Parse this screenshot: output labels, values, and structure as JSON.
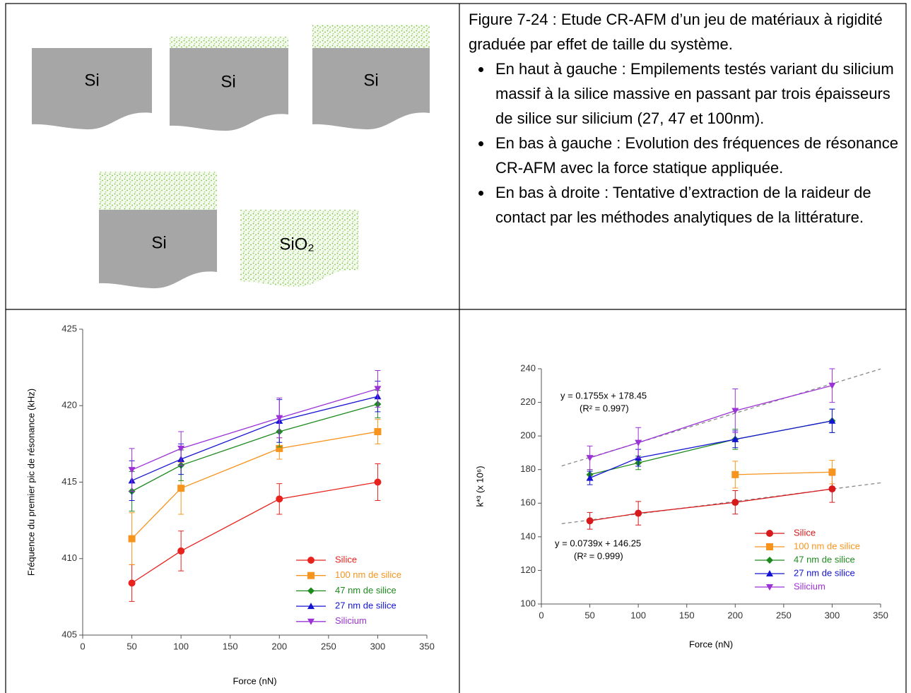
{
  "diagram": {
    "labels": [
      "Si",
      "Si",
      "Si",
      "Si",
      "SiO₂"
    ]
  },
  "caption": {
    "title": "Figure 7-24 : Etude CR-AFM d’un jeu de matériaux à rigidité graduée par effet de taille du système.",
    "bullets": [
      "En haut à gauche : Empilements testés variant du silicium massif à la silice massive en passant par trois épaisseurs de silice sur silicium (27, 47 et 100nm).",
      "En bas à gauche : Evolution des fréquences de résonance CR-AFM avec la force statique appliquée.",
      "En bas à droite : Tentative d’extraction de la raideur de contact par les méthodes analytiques de la littérature."
    ]
  },
  "chart_data": [
    {
      "type": "line",
      "x_label": "Force (nN)",
      "y_label": "Fréquence du premier pic de résonance (kHz)",
      "x": [
        50,
        100,
        200,
        300
      ],
      "xlim": [
        0,
        350
      ],
      "xticks": [
        0,
        50,
        100,
        150,
        200,
        250,
        300,
        350
      ],
      "ylim": [
        405,
        425
      ],
      "yticks": [
        405,
        410,
        415,
        420,
        425
      ],
      "legend": "lower right",
      "series": [
        {
          "name": "Silice",
          "color": "#e8221c",
          "marker": "circle",
          "values": [
            408.4,
            410.5,
            413.9,
            415.0
          ],
          "errors": [
            1.2,
            1.3,
            1.0,
            1.2
          ]
        },
        {
          "name": "100 nm de silice",
          "color": "#f7941d",
          "marker": "square",
          "values": [
            411.3,
            414.6,
            417.2,
            418.3
          ],
          "errors": [
            1.7,
            1.7,
            0.7,
            0.8
          ]
        },
        {
          "name": "47 nm de silice",
          "color": "#1e8a1e",
          "marker": "diamond",
          "values": [
            414.4,
            416.1,
            418.3,
            420.1
          ],
          "errors": [
            1.3,
            1.0,
            1.0,
            0.9
          ]
        },
        {
          "name": "27 nm de silice",
          "color": "#1414d2",
          "marker": "triangle-up",
          "values": [
            415.1,
            416.5,
            419.0,
            420.6
          ],
          "errors": [
            1.3,
            1.0,
            1.4,
            1.0
          ]
        },
        {
          "name": "Silicium",
          "color": "#9b32d6",
          "marker": "triangle-down",
          "values": [
            415.8,
            417.2,
            419.2,
            421.1
          ],
          "errors": [
            1.4,
            1.1,
            1.3,
            1.2
          ]
        }
      ]
    },
    {
      "type": "line",
      "x_label": "Force (nN)",
      "y_label": "k*³ (x 10⁶)",
      "x": [
        50,
        100,
        200,
        300
      ],
      "xlim": [
        0,
        350
      ],
      "xticks": [
        0,
        50,
        100,
        150,
        200,
        250,
        300,
        350
      ],
      "ylim": [
        100,
        240
      ],
      "yticks": [
        100,
        120,
        140,
        160,
        180,
        200,
        220,
        240
      ],
      "legend": "lower right",
      "fits": [
        {
          "label": "y = 0.1755x + 178.45",
          "r2": "(R² = 0.997)",
          "slope": 0.1755,
          "intercept": 178.45
        },
        {
          "label": "y = 0.0739x + 146.25",
          "r2": "(R² = 0.999)",
          "slope": 0.0739,
          "intercept": 146.25
        }
      ],
      "series": [
        {
          "name": "Silice",
          "color": "#d7191c",
          "marker": "circle",
          "values": [
            149.5,
            154,
            160.5,
            168.5
          ],
          "errors": [
            5,
            7,
            7,
            8
          ]
        },
        {
          "name": "100 nm de silice",
          "color": "#f7941d",
          "marker": "square",
          "values": [
            null,
            null,
            177,
            178.5
          ],
          "errors": [
            null,
            null,
            8,
            7
          ]
        },
        {
          "name": "47 nm de silice",
          "color": "#1e8a1e",
          "marker": "diamond",
          "values": [
            177,
            184,
            198,
            209
          ],
          "errors": [
            3,
            4,
            6,
            7
          ]
        },
        {
          "name": "27 nm de silice",
          "color": "#1414d2",
          "marker": "triangle-up",
          "values": [
            175,
            187,
            198,
            209
          ],
          "errors": [
            4,
            5,
            5,
            7
          ]
        },
        {
          "name": "Silicium",
          "color": "#9b32d6",
          "marker": "triangle-down",
          "values": [
            187,
            196,
            215,
            230
          ],
          "errors": [
            7,
            9,
            13,
            10
          ]
        }
      ]
    }
  ]
}
